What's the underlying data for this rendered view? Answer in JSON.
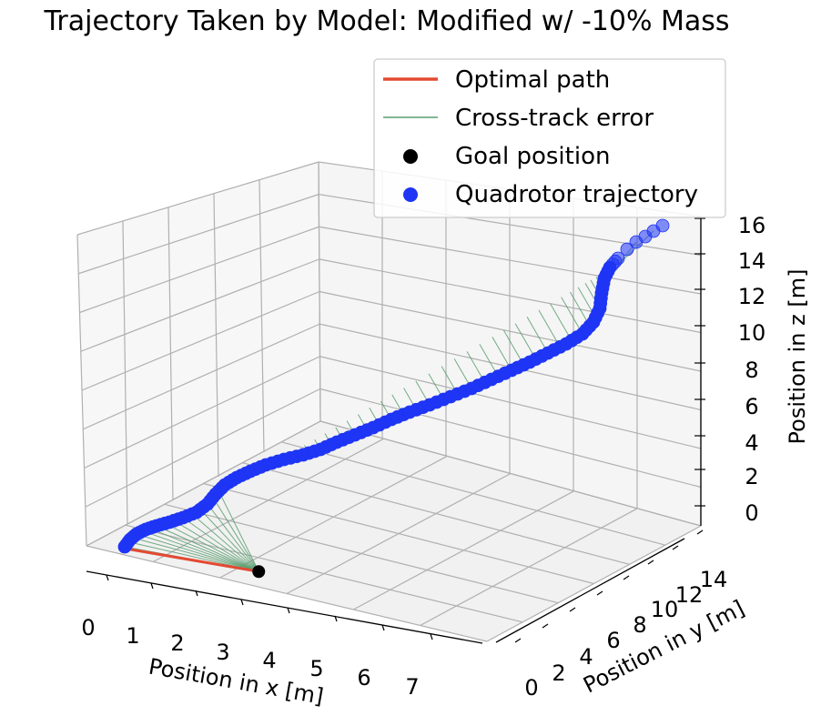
{
  "chart_data": {
    "type": "scatter",
    "title": "Trajectory Taken by Model: Modified w/ -10% Mass",
    "xlabel": "Position in x [m]",
    "ylabel": "Position in y [m]",
    "zlabel": "Position in z [m]",
    "xlim": [
      0,
      7.5
    ],
    "ylim": [
      0,
      15
    ],
    "zlim": [
      0,
      16
    ],
    "xticks": [
      "0",
      "1",
      "2",
      "3",
      "4",
      "5",
      "6",
      "7"
    ],
    "yticks": [
      "0",
      "2",
      "4",
      "6",
      "8",
      "10",
      "12",
      "14"
    ],
    "zticks": [
      "0",
      "2",
      "4",
      "6",
      "8",
      "10",
      "12",
      "14",
      "16"
    ],
    "grid": true,
    "legend_position": "top-right",
    "legend": [
      {
        "label": "Optimal path",
        "kind": "line",
        "color": "#e34a33"
      },
      {
        "label": "Cross-track error",
        "kind": "thin-line",
        "color": "#5a9e6f"
      },
      {
        "label": "Goal position",
        "kind": "marker",
        "color": "#000000"
      },
      {
        "label": "Quadrotor trajectory",
        "kind": "marker",
        "color": "#1f35f5"
      }
    ],
    "goal_position": {
      "x": 2.5,
      "y": 0.0,
      "z": 0.0
    },
    "optimal_path": {
      "start": {
        "x": 0.0,
        "y": 0.0,
        "z": 0.0
      },
      "end": {
        "x": 2.5,
        "y": 0.0,
        "z": 0.0
      }
    },
    "colors": {
      "trajectory": "#1f35f5",
      "cross_track": "#5a9e6f",
      "optimal": "#e34a33",
      "goal": "#000000"
    }
  }
}
